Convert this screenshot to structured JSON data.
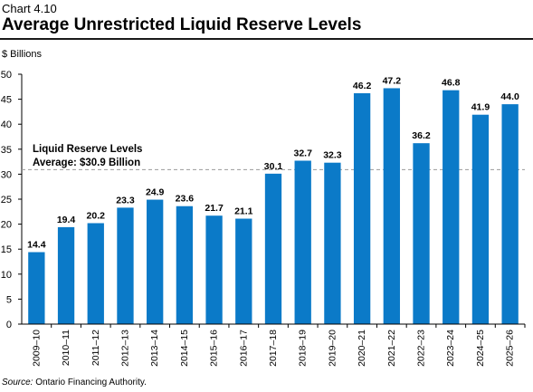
{
  "header": {
    "chart_label": "Chart 4.10",
    "title": "Average Unrestricted Liquid Reserve Levels"
  },
  "footer": {
    "source_label": "Source:",
    "source_text": " Ontario Financing Authority."
  },
  "colors": {
    "bar": "#0b7ac8",
    "average_line": "#9a9a9a",
    "axis": "#000000"
  },
  "chart_data": {
    "type": "bar",
    "ylabel": "$ Billions",
    "ylim": [
      0,
      50
    ],
    "yticks": [
      0,
      5,
      10,
      15,
      20,
      25,
      30,
      35,
      40,
      45,
      50
    ],
    "grid": false,
    "categories": [
      "2009–10",
      "2010–11",
      "2011–12",
      "2012–13",
      "2013–14",
      "2014–15",
      "2015–16",
      "2016–17",
      "2017–18",
      "2018–19",
      "2019–20",
      "2020–21",
      "2021–22",
      "2022–23",
      "2023–24",
      "2024–25",
      "2025–26"
    ],
    "values": [
      14.4,
      19.4,
      20.2,
      23.3,
      24.9,
      23.6,
      21.7,
      21.1,
      30.1,
      32.7,
      32.3,
      46.2,
      47.2,
      36.2,
      46.8,
      41.9,
      44.0
    ],
    "data_labels": [
      "14.4",
      "19.4",
      "20.2",
      "23.3",
      "24.9",
      "23.6",
      "21.7",
      "21.1",
      "30.1",
      "32.7",
      "32.3",
      "46.2",
      "47.2",
      "36.2",
      "46.8",
      "41.9",
      "44.0"
    ],
    "average": {
      "value": 30.9,
      "label_line1": "Liquid Reserve Levels",
      "label_line2": "Average: $30.9 Billion"
    }
  }
}
